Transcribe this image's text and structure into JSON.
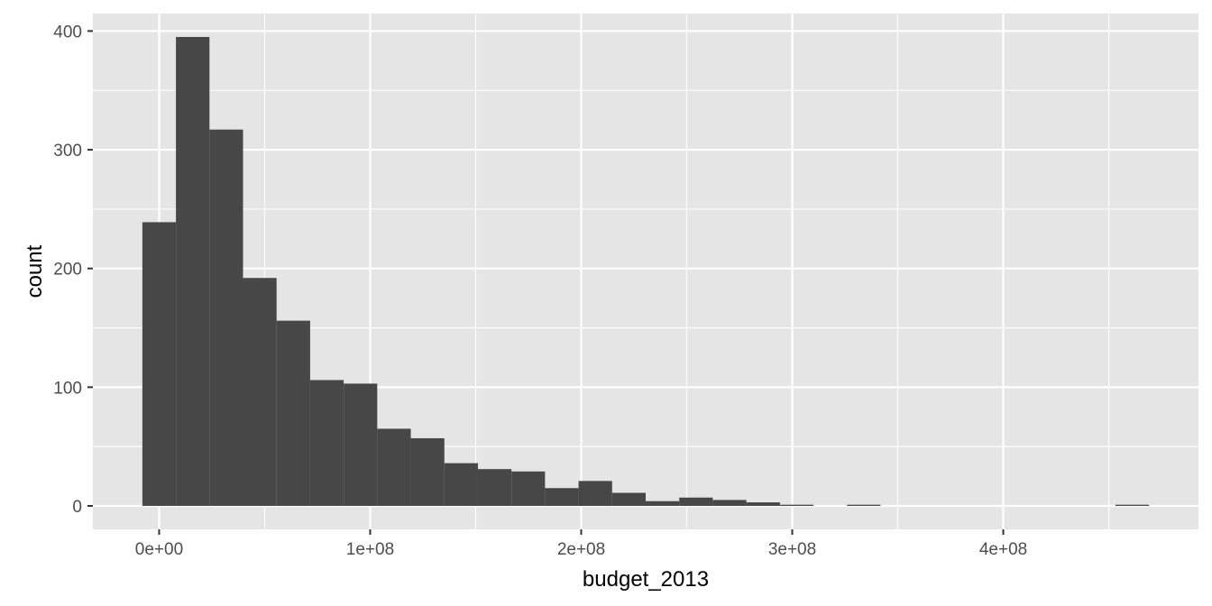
{
  "chart_data": {
    "type": "bar",
    "xlabel": "budget_2013",
    "ylabel": "count",
    "bin_width": 15900000,
    "bins": [
      {
        "x0": -7950000,
        "x1": 7950000,
        "count": 239
      },
      {
        "x0": 7950000,
        "x1": 23850000,
        "count": 395
      },
      {
        "x0": 23850000,
        "x1": 39750000,
        "count": 317
      },
      {
        "x0": 39750000,
        "x1": 55650000,
        "count": 192
      },
      {
        "x0": 55650000,
        "x1": 71550000,
        "count": 156
      },
      {
        "x0": 71550000,
        "x1": 87450000,
        "count": 106
      },
      {
        "x0": 87450000,
        "x1": 103350000,
        "count": 103
      },
      {
        "x0": 103350000,
        "x1": 119250000,
        "count": 65
      },
      {
        "x0": 119250000,
        "x1": 135150000,
        "count": 57
      },
      {
        "x0": 135150000,
        "x1": 151050000,
        "count": 36
      },
      {
        "x0": 151050000,
        "x1": 166950000,
        "count": 31
      },
      {
        "x0": 166950000,
        "x1": 182850000,
        "count": 29
      },
      {
        "x0": 182850000,
        "x1": 198750000,
        "count": 15
      },
      {
        "x0": 198750000,
        "x1": 214650000,
        "count": 21
      },
      {
        "x0": 214650000,
        "x1": 230550000,
        "count": 11
      },
      {
        "x0": 230550000,
        "x1": 246450000,
        "count": 4
      },
      {
        "x0": 246450000,
        "x1": 262350000,
        "count": 7
      },
      {
        "x0": 262350000,
        "x1": 278250000,
        "count": 5
      },
      {
        "x0": 278250000,
        "x1": 294150000,
        "count": 3
      },
      {
        "x0": 294150000,
        "x1": 310050000,
        "count": 1
      },
      {
        "x0": 310050000,
        "x1": 325950000,
        "count": 0
      },
      {
        "x0": 325950000,
        "x1": 341850000,
        "count": 1
      },
      {
        "x0": 341850000,
        "x1": 357750000,
        "count": 0
      },
      {
        "x0": 357750000,
        "x1": 373650000,
        "count": 0
      },
      {
        "x0": 373650000,
        "x1": 389550000,
        "count": 0
      },
      {
        "x0": 389550000,
        "x1": 405450000,
        "count": 0
      },
      {
        "x0": 405450000,
        "x1": 421350000,
        "count": 0
      },
      {
        "x0": 421350000,
        "x1": 437250000,
        "count": 0
      },
      {
        "x0": 437250000,
        "x1": 453150000,
        "count": 0
      },
      {
        "x0": 453150000,
        "x1": 469050000,
        "count": 1
      }
    ],
    "x_ticks": [
      {
        "value": 0,
        "label": "0e+00"
      },
      {
        "value": 100000000,
        "label": "1e+08"
      },
      {
        "value": 200000000,
        "label": "2e+08"
      },
      {
        "value": 300000000,
        "label": "3e+08"
      },
      {
        "value": 400000000,
        "label": "4e+08"
      }
    ],
    "y_ticks": [
      {
        "value": 0,
        "label": "0"
      },
      {
        "value": 100,
        "label": "100"
      },
      {
        "value": 200,
        "label": "200"
      },
      {
        "value": 300,
        "label": "300"
      },
      {
        "value": 400,
        "label": "400"
      }
    ],
    "xlim": [
      -31400000,
      492500000
    ],
    "ylim": [
      -19.75,
      414.75
    ],
    "grid": true,
    "colors": {
      "panel_background": "#e5e5e5",
      "grid_line": "#ffffff",
      "bar_fill": "#474747",
      "tick_text": "#4d4d4d",
      "tick_mark": "#333333",
      "axis_title": "#000000"
    }
  }
}
